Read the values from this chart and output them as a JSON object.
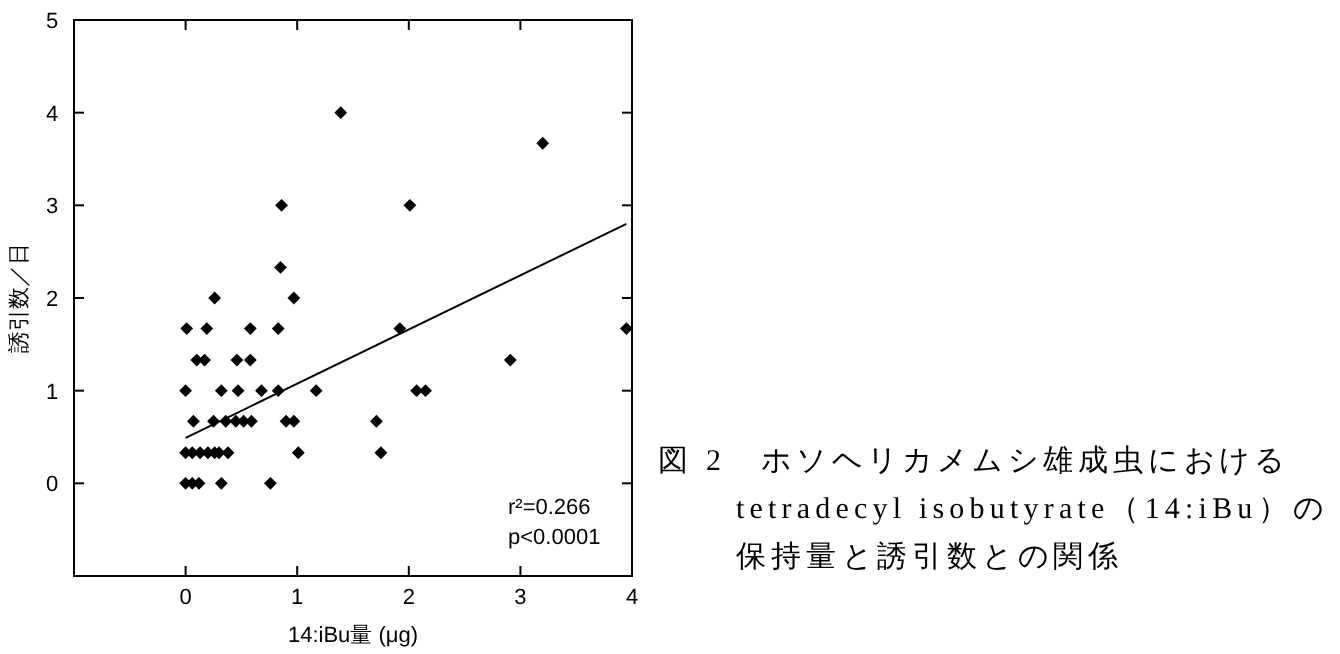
{
  "chart_data": {
    "type": "scatter",
    "title": "図 2　ホソヘリカメムシ雄成虫におけるtetradecyl isobutyrate（14:iBu）の保持量と誘引数との関係",
    "xlabel": "14:iBu量 (μg)",
    "ylabel": "誘引数／日",
    "xlim": [
      -1,
      4
    ],
    "ylim": [
      -1,
      5
    ],
    "xticks": [
      0,
      1,
      2,
      3,
      4
    ],
    "yticks": [
      0,
      1,
      2,
      3,
      4,
      5
    ],
    "marker": "diamond",
    "grid": false,
    "annotations": [
      "r²=0.266",
      "p<0.0001"
    ],
    "series": [
      {
        "type": "scatter",
        "color": "#000000",
        "x": [
          1.39,
          3.2,
          0.86,
          2.01,
          0.85,
          0.26,
          0.97,
          0.01,
          0.19,
          0.58,
          0.83,
          1.92,
          3.95,
          0.1,
          0.17,
          0.46,
          0.58,
          2.91,
          0,
          0.32,
          0.47,
          0.68,
          0.83,
          1.17,
          2.07,
          2.15,
          0.07,
          0.25,
          0.32,
          0.36,
          0.45,
          0.52,
          0.59,
          0.9,
          0.97,
          1.71,
          0,
          0.06,
          0.13,
          0.2,
          0.26,
          0.3,
          0.38,
          1.01,
          1.75,
          0,
          0.06,
          0.12,
          0.32,
          0.76
        ],
        "values": [
          4,
          3.67,
          3,
          3,
          2.33,
          2,
          2,
          1.67,
          1.67,
          1.67,
          1.67,
          1.67,
          1.67,
          1.33,
          1.33,
          1.33,
          1.33,
          1.33,
          1,
          1,
          1,
          1,
          1,
          1,
          1,
          1,
          0.67,
          0.67,
          null,
          0.67,
          0.67,
          0.67,
          0.67,
          0.67,
          0.67,
          0.67,
          0.33,
          0.33,
          0.33,
          0.33,
          0.33,
          0.33,
          0.33,
          0.33,
          0.33,
          0,
          0,
          0,
          0,
          0
        ]
      },
      {
        "type": "line",
        "marker": "none",
        "color": "#000000",
        "x": [
          0,
          3.95
        ],
        "values": [
          0.49,
          2.8
        ]
      }
    ]
  }
}
